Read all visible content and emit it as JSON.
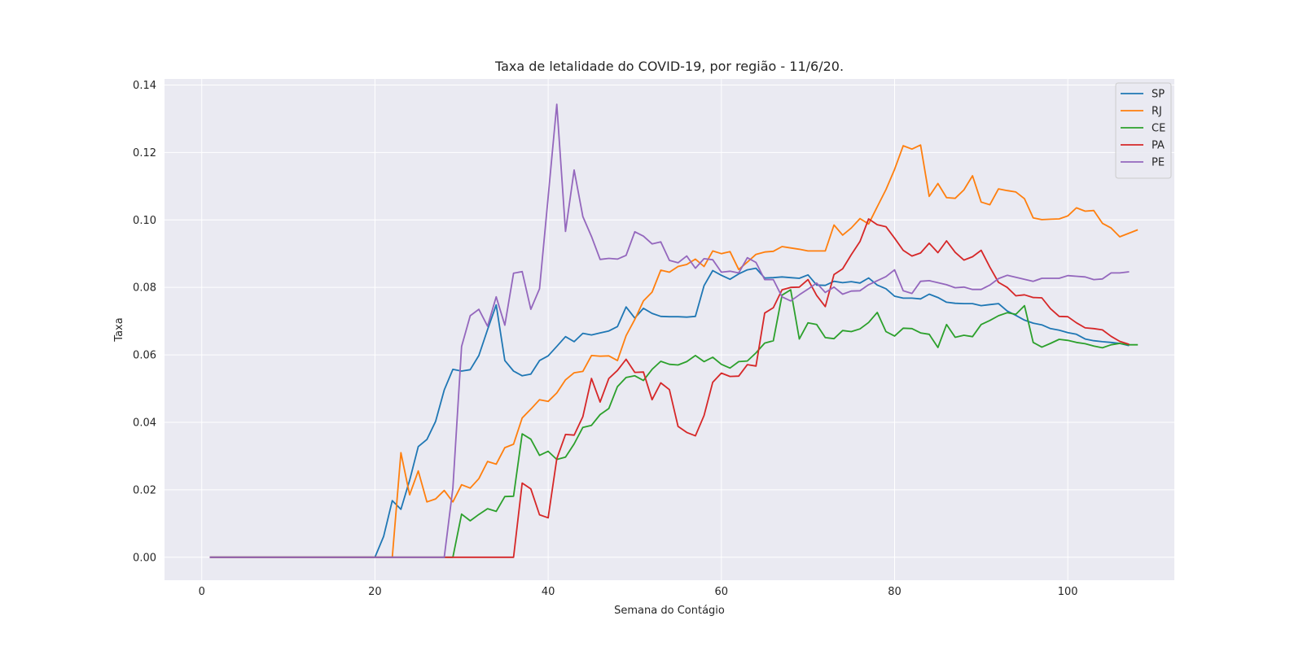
{
  "chart_data": {
    "type": "line",
    "title": "Taxa de letalidade do COVID-19, por região - 11/6/20.",
    "xlabel": "Semana do Contágio",
    "ylabel": "Taxa",
    "xlim": [
      -4.3,
      112.3
    ],
    "ylim": [
      -0.0068,
      0.1418
    ],
    "x_ticks": [
      0,
      20,
      40,
      60,
      80,
      100
    ],
    "x_tick_labels": [
      "0",
      "20",
      "40",
      "60",
      "80",
      "100"
    ],
    "y_ticks": [
      0.0,
      0.02,
      0.04,
      0.06,
      0.08,
      0.1,
      0.12,
      0.14
    ],
    "y_tick_labels": [
      "0.00",
      "0.02",
      "0.04",
      "0.06",
      "0.08",
      "0.10",
      "0.12",
      "0.14"
    ],
    "grid": true,
    "legend_position": "top-right",
    "x_start": 1,
    "series": [
      {
        "name": "SP",
        "color": "#1f77b4",
        "values": [
          0,
          0,
          0,
          0,
          0,
          0,
          0,
          0,
          0,
          0,
          0,
          0,
          0,
          0,
          0,
          0,
          0,
          0,
          0,
          0,
          0.0062,
          0.0168,
          0.0142,
          0.0228,
          0.0328,
          0.0349,
          0.0403,
          0.0496,
          0.0557,
          0.0552,
          0.0556,
          0.0598,
          0.0675,
          0.0748,
          0.0583,
          0.0552,
          0.0538,
          0.0543,
          0.0583,
          0.0597,
          0.0625,
          0.0654,
          0.0639,
          0.0664,
          0.0659,
          0.0665,
          0.0671,
          0.0684,
          0.0742,
          0.0709,
          0.0738,
          0.0723,
          0.0714,
          0.0713,
          0.0713,
          0.0712,
          0.0714,
          0.0805,
          0.085,
          0.0836,
          0.0824,
          0.084,
          0.0852,
          0.0857,
          0.0828,
          0.0829,
          0.0831,
          0.0829,
          0.0827,
          0.0837,
          0.0807,
          0.0806,
          0.0818,
          0.0814,
          0.0817,
          0.0813,
          0.0828,
          0.0807,
          0.0796,
          0.0774,
          0.0768,
          0.0768,
          0.0766,
          0.078,
          0.077,
          0.0756,
          0.0753,
          0.0752,
          0.0752,
          0.0746,
          0.0749,
          0.0752,
          0.073,
          0.0717,
          0.0703,
          0.0694,
          0.0689,
          0.0678,
          0.0673,
          0.0666,
          0.0661,
          0.0647,
          0.0642,
          0.0639,
          0.0637,
          0.0634,
          0.0628
        ]
      },
      {
        "name": "RJ",
        "color": "#ff7f0e",
        "values": [
          0,
          0,
          0,
          0,
          0,
          0,
          0,
          0,
          0,
          0,
          0,
          0,
          0,
          0,
          0,
          0,
          0,
          0,
          0,
          0,
          0,
          0,
          0.031,
          0.0185,
          0.0256,
          0.0164,
          0.0173,
          0.0198,
          0.0164,
          0.0215,
          0.0205,
          0.0233,
          0.0284,
          0.0276,
          0.0325,
          0.0335,
          0.0413,
          0.0439,
          0.0467,
          0.0462,
          0.0487,
          0.0526,
          0.0547,
          0.0551,
          0.0598,
          0.0596,
          0.0597,
          0.0583,
          0.0657,
          0.0705,
          0.076,
          0.0786,
          0.0851,
          0.0845,
          0.0862,
          0.0868,
          0.0884,
          0.0862,
          0.0908,
          0.09,
          0.0906,
          0.0853,
          0.0875,
          0.0898,
          0.0905,
          0.0907,
          0.0921,
          0.0917,
          0.0913,
          0.0908,
          0.0908,
          0.0908,
          0.0985,
          0.0955,
          0.0976,
          0.1004,
          0.0988,
          0.1039,
          0.109,
          0.115,
          0.122,
          0.121,
          0.1222,
          0.107,
          0.1108,
          0.1066,
          0.1064,
          0.1089,
          0.1131,
          0.1053,
          0.1045,
          0.1092,
          0.1087,
          0.1083,
          0.1063,
          0.1006,
          0.1001,
          0.1002,
          0.1003,
          0.1012,
          0.1036,
          0.1026,
          0.1028,
          0.099,
          0.0976,
          0.095,
          0.096,
          0.097
        ]
      },
      {
        "name": "CE",
        "color": "#2ca02c",
        "values": [
          0,
          0,
          0,
          0,
          0,
          0,
          0,
          0,
          0,
          0,
          0,
          0,
          0,
          0,
          0,
          0,
          0,
          0,
          0,
          0,
          0,
          0,
          0,
          0,
          0,
          0,
          0,
          0,
          0,
          0.0128,
          0.0108,
          0.0127,
          0.0144,
          0.0136,
          0.018,
          0.0181,
          0.0366,
          0.035,
          0.0302,
          0.0314,
          0.029,
          0.0297,
          0.0336,
          0.0385,
          0.0391,
          0.0423,
          0.0441,
          0.0506,
          0.0533,
          0.0538,
          0.0524,
          0.0557,
          0.0581,
          0.0572,
          0.057,
          0.058,
          0.0598,
          0.058,
          0.0593,
          0.0572,
          0.0561,
          0.058,
          0.0582,
          0.0606,
          0.0635,
          0.0642,
          0.0777,
          0.0793,
          0.0647,
          0.0695,
          0.069,
          0.0651,
          0.0648,
          0.0672,
          0.0669,
          0.0677,
          0.0696,
          0.0726,
          0.0669,
          0.0656,
          0.0679,
          0.0678,
          0.0665,
          0.0661,
          0.0622,
          0.069,
          0.0652,
          0.0658,
          0.0654,
          0.069,
          0.0702,
          0.0716,
          0.0725,
          0.072,
          0.0746,
          0.0637,
          0.0623,
          0.0634,
          0.0646,
          0.0643,
          0.0637,
          0.0633,
          0.0626,
          0.0621,
          0.063,
          0.0634,
          0.063,
          0.063
        ]
      },
      {
        "name": "PA",
        "color": "#d62728",
        "values": [
          0,
          0,
          0,
          0,
          0,
          0,
          0,
          0,
          0,
          0,
          0,
          0,
          0,
          0,
          0,
          0,
          0,
          0,
          0,
          0,
          0,
          0,
          0,
          0,
          0,
          0,
          0,
          0,
          0,
          0,
          0,
          0,
          0,
          0,
          0,
          0,
          0.022,
          0.0203,
          0.0126,
          0.0117,
          0.0292,
          0.0364,
          0.0362,
          0.0417,
          0.053,
          0.046,
          0.053,
          0.0554,
          0.0587,
          0.0548,
          0.0549,
          0.0467,
          0.0517,
          0.0497,
          0.0388,
          0.037,
          0.036,
          0.042,
          0.0519,
          0.0546,
          0.0536,
          0.0537,
          0.0571,
          0.0567,
          0.0724,
          0.074,
          0.0793,
          0.08,
          0.0801,
          0.0823,
          0.0776,
          0.0743,
          0.0838,
          0.0855,
          0.0897,
          0.0936,
          0.1003,
          0.0986,
          0.098,
          0.0946,
          0.091,
          0.0893,
          0.0902,
          0.0931,
          0.0903,
          0.0938,
          0.0904,
          0.0881,
          0.0891,
          0.091,
          0.086,
          0.0815,
          0.08,
          0.0775,
          0.0778,
          0.077,
          0.0769,
          0.0737,
          0.0714,
          0.0713,
          0.0695,
          0.068,
          0.0678,
          0.0674,
          0.0655,
          0.064,
          0.0632
        ]
      },
      {
        "name": "PE",
        "color": "#9467bd",
        "values": [
          0,
          0,
          0,
          0,
          0,
          0,
          0,
          0,
          0,
          0,
          0,
          0,
          0,
          0,
          0,
          0,
          0,
          0,
          0,
          0,
          0,
          0,
          0,
          0,
          0,
          0,
          0,
          0,
          0.0205,
          0.0625,
          0.0716,
          0.0735,
          0.0685,
          0.0772,
          0.0688,
          0.0842,
          0.0847,
          0.0735,
          0.0796,
          0.1068,
          0.1343,
          0.0966,
          0.1148,
          0.101,
          0.0951,
          0.0883,
          0.0886,
          0.0884,
          0.0895,
          0.0965,
          0.0952,
          0.0929,
          0.0935,
          0.088,
          0.0873,
          0.0893,
          0.0857,
          0.0885,
          0.0882,
          0.0845,
          0.0848,
          0.0843,
          0.0888,
          0.0874,
          0.0823,
          0.0823,
          0.0772,
          0.076,
          0.0778,
          0.0795,
          0.0813,
          0.0785,
          0.0801,
          0.078,
          0.0789,
          0.079,
          0.0808,
          0.082,
          0.0832,
          0.0852,
          0.079,
          0.0782,
          0.0818,
          0.082,
          0.0814,
          0.0808,
          0.0799,
          0.0801,
          0.0794,
          0.0794,
          0.0807,
          0.0826,
          0.0836,
          0.083,
          0.0824,
          0.0818,
          0.0827,
          0.0827,
          0.0827,
          0.0835,
          0.0833,
          0.0831,
          0.0823,
          0.0825,
          0.0843,
          0.0843,
          0.0846
        ]
      }
    ]
  }
}
